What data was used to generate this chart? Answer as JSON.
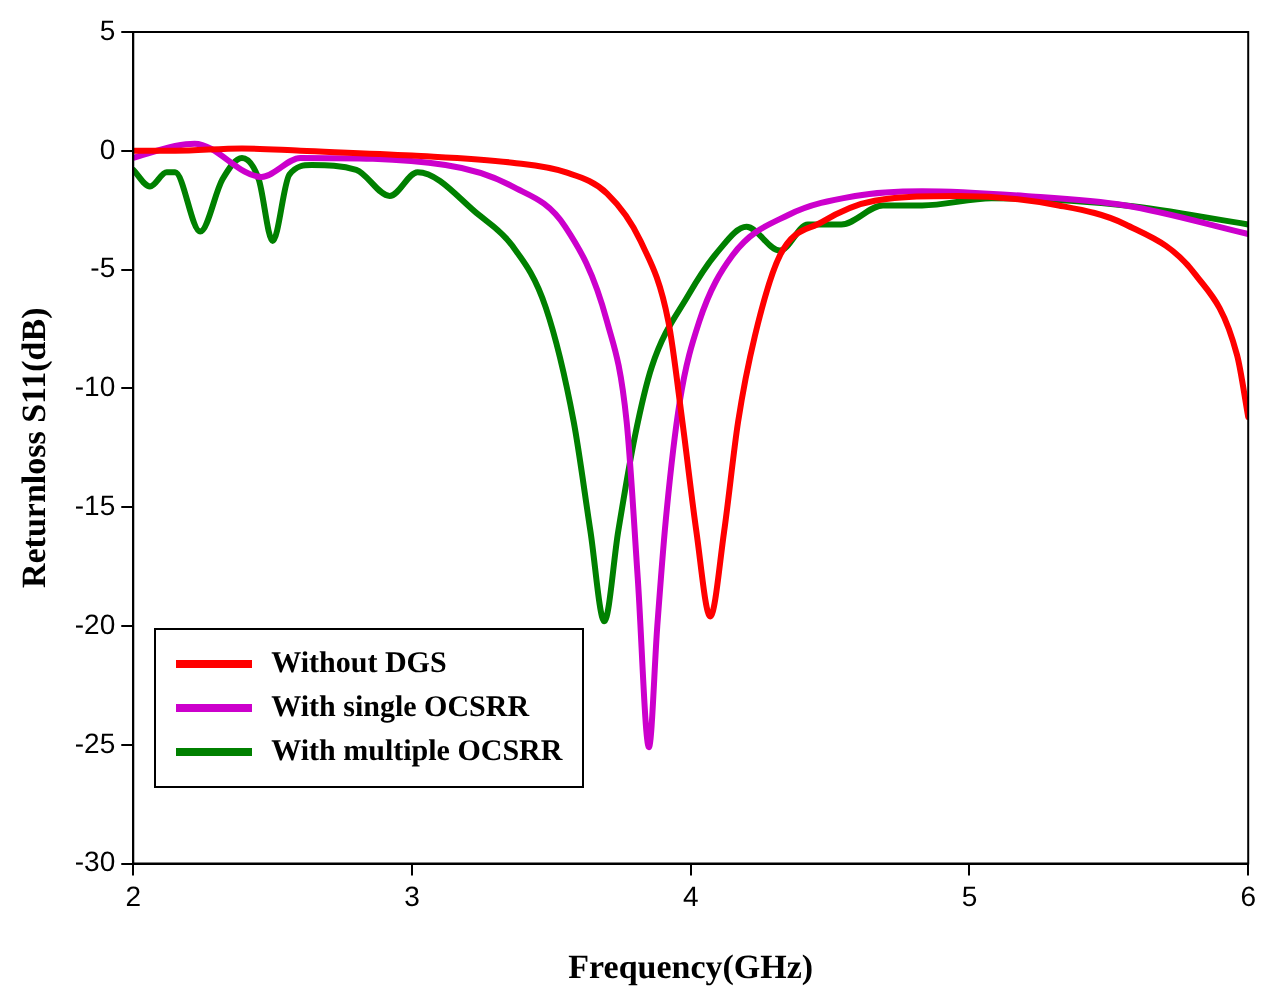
{
  "chart_data": {
    "type": "line",
    "xlabel": "Frequency(GHz)",
    "ylabel": "Returnloss S11(dB)",
    "xlim": [
      2,
      6
    ],
    "xticks": [
      2,
      3,
      4,
      5,
      6
    ],
    "ylim": [
      -30,
      5
    ],
    "yticks": [
      -30,
      -25,
      -20,
      -15,
      -10,
      -5,
      0,
      5
    ],
    "grid": false,
    "legend": "bottom left",
    "marker": "none",
    "line_style": "solid",
    "series": [
      {
        "name": "Without DGS",
        "color": "#ff0000",
        "x": [
          2,
          2.15,
          2.39,
          2.6,
          3.0,
          3.36,
          3.55,
          3.7,
          3.82,
          3.92,
          3.97,
          4.02,
          4.07,
          4.12,
          4.17,
          4.23,
          4.32,
          4.47,
          4.66,
          4.96,
          5.32,
          5.56,
          5.81,
          5.96,
          6.0
        ],
        "values": [
          0,
          0,
          0.1,
          0,
          -0.2,
          -0.5,
          -0.9,
          -1.8,
          -3.8,
          -7.2,
          -11.4,
          -16,
          -19.6,
          -16,
          -11.4,
          -7.8,
          -4.4,
          -3,
          -2.1,
          -1.9,
          -2.3,
          -3.1,
          -5.2,
          -8.6,
          -11.2
        ]
      },
      {
        "name": "With single OCSRR",
        "color": "#cc00cc",
        "x": [
          2,
          2.15,
          2.22,
          2.46,
          2.6,
          3.12,
          3.36,
          3.55,
          3.7,
          3.77,
          3.81,
          3.85,
          3.88,
          3.91,
          3.96,
          4.03,
          4.15,
          4.35,
          4.59,
          4.83,
          5.2,
          5.56,
          6.0
        ],
        "values": [
          -0.3,
          0.2,
          0.3,
          -1.1,
          -0.3,
          -0.6,
          -1.5,
          -3.2,
          -7.2,
          -11.4,
          -18,
          -25.1,
          -20,
          -15.6,
          -10.6,
          -7.2,
          -4.4,
          -2.7,
          -1.9,
          -1.7,
          -1.9,
          -2.3,
          -3.5
        ]
      },
      {
        "name": "With multiple OCSRR",
        "color": "#008000",
        "x": [
          2,
          2.06,
          2.12,
          2.15,
          2.24,
          2.32,
          2.39,
          2.45,
          2.5,
          2.56,
          2.64,
          2.8,
          2.92,
          3.02,
          3.24,
          3.36,
          3.48,
          3.58,
          3.64,
          3.69,
          3.74,
          3.8,
          3.86,
          3.99,
          4.1,
          4.2,
          4.32,
          4.42,
          4.54,
          4.69,
          4.83,
          5.08,
          5.56,
          6.0
        ],
        "values": [
          -0.8,
          -1.5,
          -0.9,
          -0.9,
          -3.4,
          -1.2,
          -0.3,
          -1.2,
          -3.8,
          -1,
          -0.6,
          -0.8,
          -1.9,
          -0.9,
          -2.7,
          -4,
          -6.6,
          -11.4,
          -16,
          -19.8,
          -16,
          -12,
          -9.1,
          -6.1,
          -4.2,
          -3.2,
          -4.2,
          -3.1,
          -3.1,
          -2.3,
          -2.3,
          -2.0,
          -2.3,
          -3.1
        ]
      }
    ]
  }
}
